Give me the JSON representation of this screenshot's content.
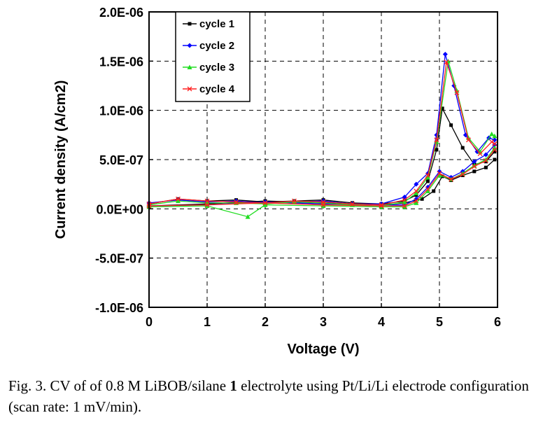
{
  "caption": {
    "prefix": "Fig. 3.  CV of of 0.8 M LiBOB/silane ",
    "bold": "1",
    "suffix": " electrolyte using Pt/Li/Li electrode configuration (scan rate: 1 mV/min)."
  },
  "chart_data": {
    "type": "line",
    "title": "",
    "xlabel": "Voltage (V)",
    "ylabel": "Current density (A/cm2)",
    "xlim": [
      0,
      6
    ],
    "ylim": [
      -1e-06,
      2e-06
    ],
    "xticks": [
      0,
      1,
      2,
      3,
      4,
      5,
      6
    ],
    "xtick_labels": [
      "0",
      "1",
      "2",
      "3",
      "4",
      "5",
      "6"
    ],
    "yticks": [
      -1e-06,
      -5e-07,
      0,
      5e-07,
      1e-06,
      1.5e-06,
      2e-06
    ],
    "ytick_labels": [
      "-1.0E-06",
      "-5.0E-07",
      "0.0E+00",
      "5.0E-07",
      "1.0E-06",
      "1.5E-06",
      "2.0E-06"
    ],
    "grid": true,
    "legend_position": "top-left",
    "series": [
      {
        "name": "cycle 1",
        "color": "#000000",
        "marker": "square",
        "forward": [
          [
            0,
            5e-08
          ],
          [
            0.5,
            1e-07
          ],
          [
            1.0,
            8e-08
          ],
          [
            1.5,
            9e-08
          ],
          [
            2.0,
            7e-08
          ],
          [
            2.5,
            8e-08
          ],
          [
            3.0,
            9e-08
          ],
          [
            3.5,
            6e-08
          ],
          [
            4.0,
            5e-08
          ],
          [
            4.4,
            8e-08
          ],
          [
            4.6,
            1.4e-07
          ],
          [
            4.8,
            2.8e-07
          ],
          [
            4.95,
            6e-07
          ],
          [
            5.05,
            1.02e-06
          ],
          [
            5.2,
            8.5e-07
          ],
          [
            5.4,
            6.2e-07
          ],
          [
            5.6,
            4.5e-07
          ],
          [
            5.8,
            4.8e-07
          ],
          [
            5.95,
            5.8e-07
          ]
        ],
        "reverse": [
          [
            5.95,
            5e-07
          ],
          [
            5.8,
            4.2e-07
          ],
          [
            5.6,
            3.8e-07
          ],
          [
            5.4,
            3.4e-07
          ],
          [
            5.2,
            2.9e-07
          ],
          [
            5.05,
            3.3e-07
          ],
          [
            4.9,
            1.8e-07
          ],
          [
            4.7,
            1e-07
          ],
          [
            4.4,
            6e-08
          ],
          [
            4.0,
            4e-08
          ],
          [
            3.0,
            6e-08
          ],
          [
            2.0,
            8e-08
          ],
          [
            1.0,
            5e-08
          ],
          [
            0,
            3e-08
          ]
        ]
      },
      {
        "name": "cycle 2",
        "color": "#0000ff",
        "marker": "diamond",
        "forward": [
          [
            0,
            6e-08
          ],
          [
            0.5,
            9e-08
          ],
          [
            1.0,
            7e-08
          ],
          [
            1.5,
            8e-08
          ],
          [
            2.0,
            6e-08
          ],
          [
            2.5,
            7e-08
          ],
          [
            3.0,
            8e-08
          ],
          [
            3.5,
            5e-08
          ],
          [
            4.0,
            5e-08
          ],
          [
            4.4,
            1.2e-07
          ],
          [
            4.6,
            2.5e-07
          ],
          [
            4.8,
            3.6e-07
          ],
          [
            4.95,
            7.5e-07
          ],
          [
            5.1,
            1.57e-06
          ],
          [
            5.25,
            1.25e-06
          ],
          [
            5.45,
            7.5e-07
          ],
          [
            5.65,
            5.8e-07
          ],
          [
            5.85,
            7.2e-07
          ],
          [
            5.95,
            7e-07
          ]
        ],
        "reverse": [
          [
            5.95,
            6.5e-07
          ],
          [
            5.8,
            5.5e-07
          ],
          [
            5.6,
            4.8e-07
          ],
          [
            5.4,
            3.8e-07
          ],
          [
            5.2,
            3.2e-07
          ],
          [
            5.0,
            3.8e-07
          ],
          [
            4.8,
            2.2e-07
          ],
          [
            4.6,
            1e-07
          ],
          [
            4.4,
            4e-08
          ],
          [
            4.0,
            4e-08
          ],
          [
            3.0,
            5e-08
          ],
          [
            2.0,
            7e-08
          ],
          [
            1.0,
            4e-08
          ],
          [
            0,
            3e-08
          ]
        ]
      },
      {
        "name": "cycle 3",
        "color": "#22dd22",
        "marker": "triangle",
        "forward": [
          [
            0,
            4e-08
          ],
          [
            0.5,
            8e-08
          ],
          [
            1.0,
            6e-08
          ],
          [
            1.5,
            6e-08
          ],
          [
            2.0,
            5e-08
          ],
          [
            2.5,
            7e-08
          ],
          [
            3.0,
            6e-08
          ],
          [
            3.5,
            4e-08
          ],
          [
            4.0,
            3e-08
          ],
          [
            4.4,
            7e-08
          ],
          [
            4.6,
            1.6e-07
          ],
          [
            4.8,
            3.2e-07
          ],
          [
            4.95,
            6.8e-07
          ],
          [
            5.15,
            1.5e-06
          ],
          [
            5.3,
            1.2e-06
          ],
          [
            5.5,
            7.2e-07
          ],
          [
            5.7,
            5.8e-07
          ],
          [
            5.9,
            7.6e-07
          ],
          [
            5.95,
            7.4e-07
          ]
        ],
        "reverse": [
          [
            5.95,
            6.2e-07
          ],
          [
            5.8,
            5e-07
          ],
          [
            5.6,
            4.4e-07
          ],
          [
            5.4,
            3.6e-07
          ],
          [
            5.2,
            3e-07
          ],
          [
            5.0,
            3.4e-07
          ],
          [
            4.8,
            1.8e-07
          ],
          [
            4.6,
            6e-08
          ],
          [
            4.4,
            2e-08
          ],
          [
            4.0,
            2e-08
          ],
          [
            3.0,
            3e-08
          ],
          [
            2.0,
            4e-08
          ],
          [
            1.7,
            -8e-08
          ],
          [
            1.0,
            3e-08
          ],
          [
            0,
            2e-08
          ]
        ]
      },
      {
        "name": "cycle 4",
        "color": "#ff2020",
        "marker": "x",
        "forward": [
          [
            0,
            5e-08
          ],
          [
            0.5,
            1e-07
          ],
          [
            1.0,
            8e-08
          ],
          [
            1.5,
            7e-08
          ],
          [
            2.0,
            6e-08
          ],
          [
            2.5,
            8e-08
          ],
          [
            3.0,
            7e-08
          ],
          [
            3.5,
            5e-08
          ],
          [
            4.0,
            4e-08
          ],
          [
            4.4,
            9e-08
          ],
          [
            4.6,
            1.8e-07
          ],
          [
            4.8,
            3.4e-07
          ],
          [
            4.95,
            7e-07
          ],
          [
            5.12,
            1.49e-06
          ],
          [
            5.3,
            1.18e-06
          ],
          [
            5.5,
            7e-07
          ],
          [
            5.7,
            5.6e-07
          ],
          [
            5.9,
            6.8e-07
          ],
          [
            5.95,
            6.6e-07
          ]
        ],
        "reverse": [
          [
            5.95,
            6e-07
          ],
          [
            5.8,
            4.9e-07
          ],
          [
            5.6,
            4.3e-07
          ],
          [
            5.4,
            3.5e-07
          ],
          [
            5.2,
            3e-07
          ],
          [
            5.0,
            3.6e-07
          ],
          [
            4.8,
            2e-07
          ],
          [
            4.6,
            8e-08
          ],
          [
            4.4,
            3e-08
          ],
          [
            4.0,
            3e-08
          ],
          [
            3.0,
            4e-08
          ],
          [
            2.0,
            6e-08
          ],
          [
            1.0,
            4e-08
          ],
          [
            0,
            3e-08
          ]
        ]
      }
    ]
  }
}
